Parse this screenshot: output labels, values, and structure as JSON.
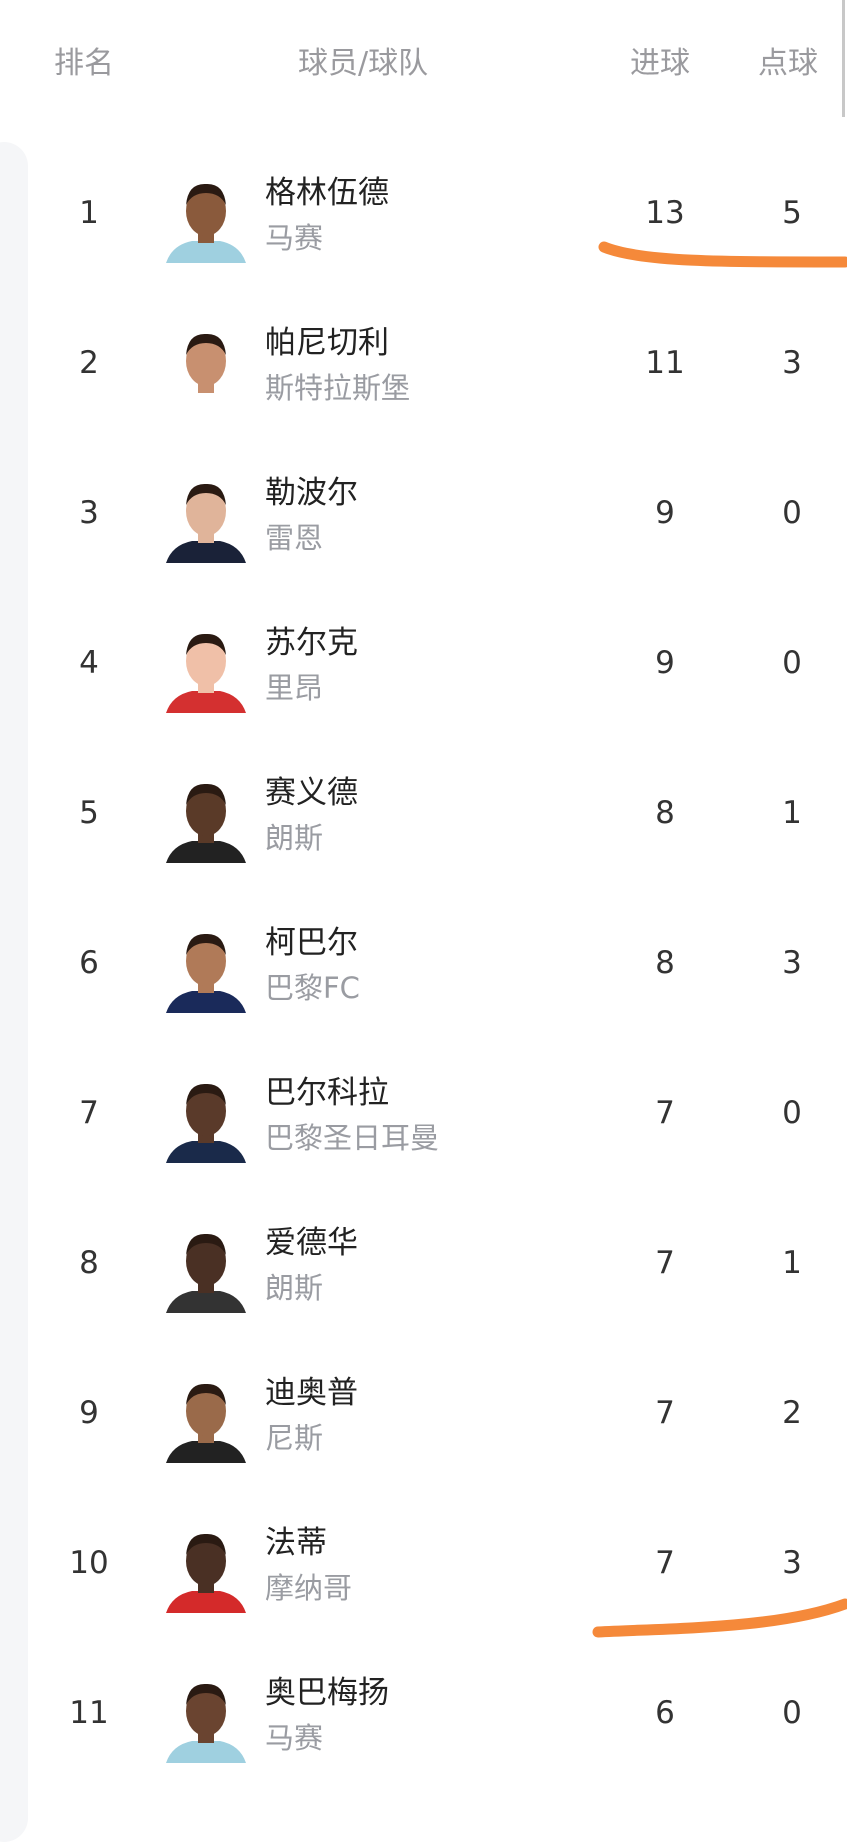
{
  "header": {
    "rank": "排名",
    "player_team": "球员/球队",
    "goals": "进球",
    "penalties": "点球"
  },
  "rows": [
    {
      "rank": "1",
      "name": "格林伍德",
      "team": "马赛",
      "goals": "13",
      "penalties": "5",
      "skin": "#8a5a3c",
      "shirt": "#9fd0e0"
    },
    {
      "rank": "2",
      "name": "帕尼切利",
      "team": "斯特拉斯堡",
      "goals": "11",
      "penalties": "3",
      "skin": "#c89070",
      "shirt": "#ffffff"
    },
    {
      "rank": "3",
      "name": "勒波尔",
      "team": "雷恩",
      "goals": "9",
      "penalties": "0",
      "skin": "#e0b49a",
      "shirt": "#1a2238"
    },
    {
      "rank": "4",
      "name": "苏尔克",
      "team": "里昂",
      "goals": "9",
      "penalties": "0",
      "skin": "#f0c0a8",
      "shirt": "#d43030"
    },
    {
      "rank": "5",
      "name": "赛义德",
      "team": "朗斯",
      "goals": "8",
      "penalties": "1",
      "skin": "#5a3a28",
      "shirt": "#222222"
    },
    {
      "rank": "6",
      "name": "柯巴尔",
      "team": "巴黎FC",
      "goals": "8",
      "penalties": "3",
      "skin": "#b07a58",
      "shirt": "#1a2a5a"
    },
    {
      "rank": "7",
      "name": "巴尔科拉",
      "team": "巴黎圣日耳曼",
      "goals": "7",
      "penalties": "0",
      "skin": "#5a3a2a",
      "shirt": "#1a2a4a"
    },
    {
      "rank": "8",
      "name": "爱德华",
      "team": "朗斯",
      "goals": "7",
      "penalties": "1",
      "skin": "#4a3024",
      "shirt": "#333333"
    },
    {
      "rank": "9",
      "name": "迪奥普",
      "team": "尼斯",
      "goals": "7",
      "penalties": "2",
      "skin": "#9a6a4a",
      "shirt": "#222222"
    },
    {
      "rank": "10",
      "name": "法蒂",
      "team": "摩纳哥",
      "goals": "7",
      "penalties": "3",
      "skin": "#4a3024",
      "shirt": "#d42a2a"
    },
    {
      "rank": "11",
      "name": "奥巴梅扬",
      "team": "马赛",
      "goals": "6",
      "penalties": "0",
      "skin": "#6a4430",
      "shirt": "#9fd0e0"
    }
  ],
  "annotation_color": "#f5893a"
}
